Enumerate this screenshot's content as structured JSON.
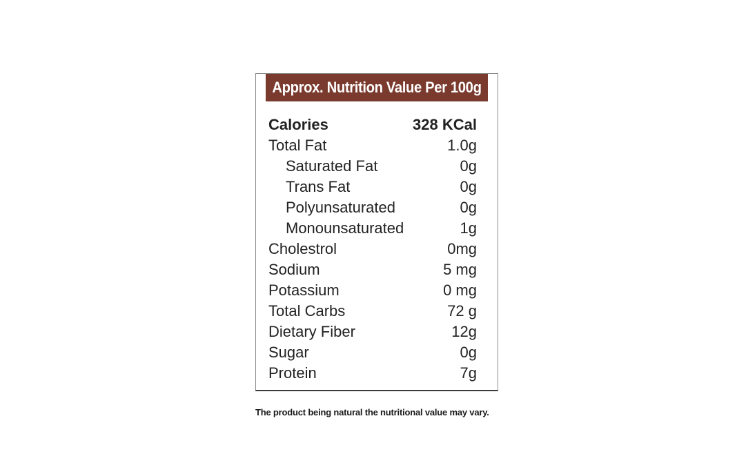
{
  "label": {
    "title": "Approx. Nutrition Value Per 100g",
    "header_color": "#7a3b2e",
    "rows": [
      {
        "nutrient": "Calories",
        "amount": "328 KCal",
        "bold": true,
        "indent": false
      },
      {
        "nutrient": "Total Fat",
        "amount": "1.0g",
        "bold": false,
        "indent": false
      },
      {
        "nutrient": "Saturated Fat",
        "amount": "0g",
        "bold": false,
        "indent": true
      },
      {
        "nutrient": "Trans Fat",
        "amount": "0g",
        "bold": false,
        "indent": true
      },
      {
        "nutrient": "Polyunsaturated",
        "amount": "0g",
        "bold": false,
        "indent": true
      },
      {
        "nutrient": "Monounsaturated",
        "amount": "1g",
        "bold": false,
        "indent": true
      },
      {
        "nutrient": "Cholestrol",
        "amount": "0mg",
        "bold": false,
        "indent": false
      },
      {
        "nutrient": "Sodium",
        "amount": "5 mg",
        "bold": false,
        "indent": false
      },
      {
        "nutrient": "Potassium",
        "amount": "0 mg",
        "bold": false,
        "indent": false
      },
      {
        "nutrient": "Total Carbs",
        "amount": "72 g",
        "bold": false,
        "indent": false
      },
      {
        "nutrient": "Dietary Fiber",
        "amount": "12g",
        "bold": false,
        "indent": false
      },
      {
        "nutrient": "Sugar",
        "amount": "0g",
        "bold": false,
        "indent": false
      },
      {
        "nutrient": "Protein",
        "amount": "7g",
        "bold": false,
        "indent": false
      }
    ]
  },
  "note": "The product being natural the nutritional value may vary."
}
